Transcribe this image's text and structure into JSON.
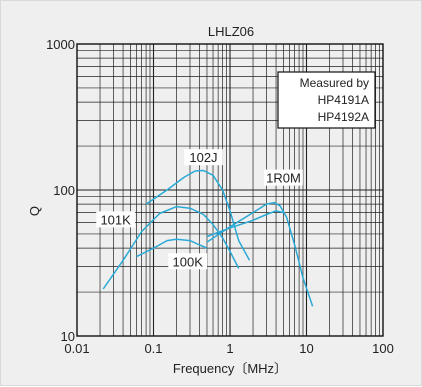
{
  "chart_data": {
    "type": "line",
    "title": "LHLZ06",
    "xlabel": "Frequency〔MHz〕",
    "ylabel": "Q",
    "x_scale": "log",
    "y_scale": "log",
    "xlim": [
      0.01,
      100
    ],
    "ylim": [
      10,
      1000
    ],
    "x_ticks": [
      "0.01",
      "0.1",
      "1",
      "10",
      "100"
    ],
    "y_ticks": [
      "10",
      "100",
      "1000"
    ],
    "grid": true,
    "legend": {
      "position": "top-right",
      "lines": [
        "Measured by",
        "HP4191A",
        "HP4192A"
      ]
    },
    "series_color": "#2aa9d6",
    "series": [
      {
        "name": "102J",
        "x": [
          0.08,
          0.15,
          0.25,
          0.35,
          0.45,
          0.6,
          0.8,
          1.0,
          1.3,
          1.8
        ],
        "y": [
          80,
          100,
          122,
          135,
          136,
          126,
          100,
          72,
          45,
          33
        ]
      },
      {
        "name": "101K",
        "x": [
          0.022,
          0.04,
          0.07,
          0.12,
          0.2,
          0.3,
          0.45,
          0.6,
          0.8,
          1.0,
          1.3
        ],
        "y": [
          21,
          33,
          52,
          69,
          77,
          75,
          68,
          58,
          47,
          38,
          29
        ]
      },
      {
        "name": "100K",
        "x": [
          0.06,
          0.1,
          0.15,
          0.2,
          0.3,
          0.4,
          0.5
        ],
        "y": [
          35,
          40,
          45,
          46,
          45,
          42,
          40
        ]
      },
      {
        "name": "1R0M",
        "x": [
          0.5,
          1.0,
          2.0,
          3.0,
          3.8,
          4.5,
          5.5,
          7.0,
          9.0,
          12.0
        ],
        "y": [
          44,
          56,
          70,
          80,
          82,
          78,
          65,
          42,
          25,
          16
        ]
      },
      {
        "name": "",
        "x": [
          0.5,
          1.0,
          2.0,
          3.0,
          4.0,
          5.0
        ],
        "y": [
          48,
          55,
          62,
          68,
          72,
          70
        ]
      }
    ],
    "series_labels": [
      {
        "text": "102J",
        "x": 0.45,
        "y": 160
      },
      {
        "text": "101K",
        "x": 0.032,
        "y": 60
      },
      {
        "text": "100K",
        "x": 0.28,
        "y": 31
      },
      {
        "text": "1R0M",
        "x": 5.0,
        "y": 116
      }
    ]
  }
}
